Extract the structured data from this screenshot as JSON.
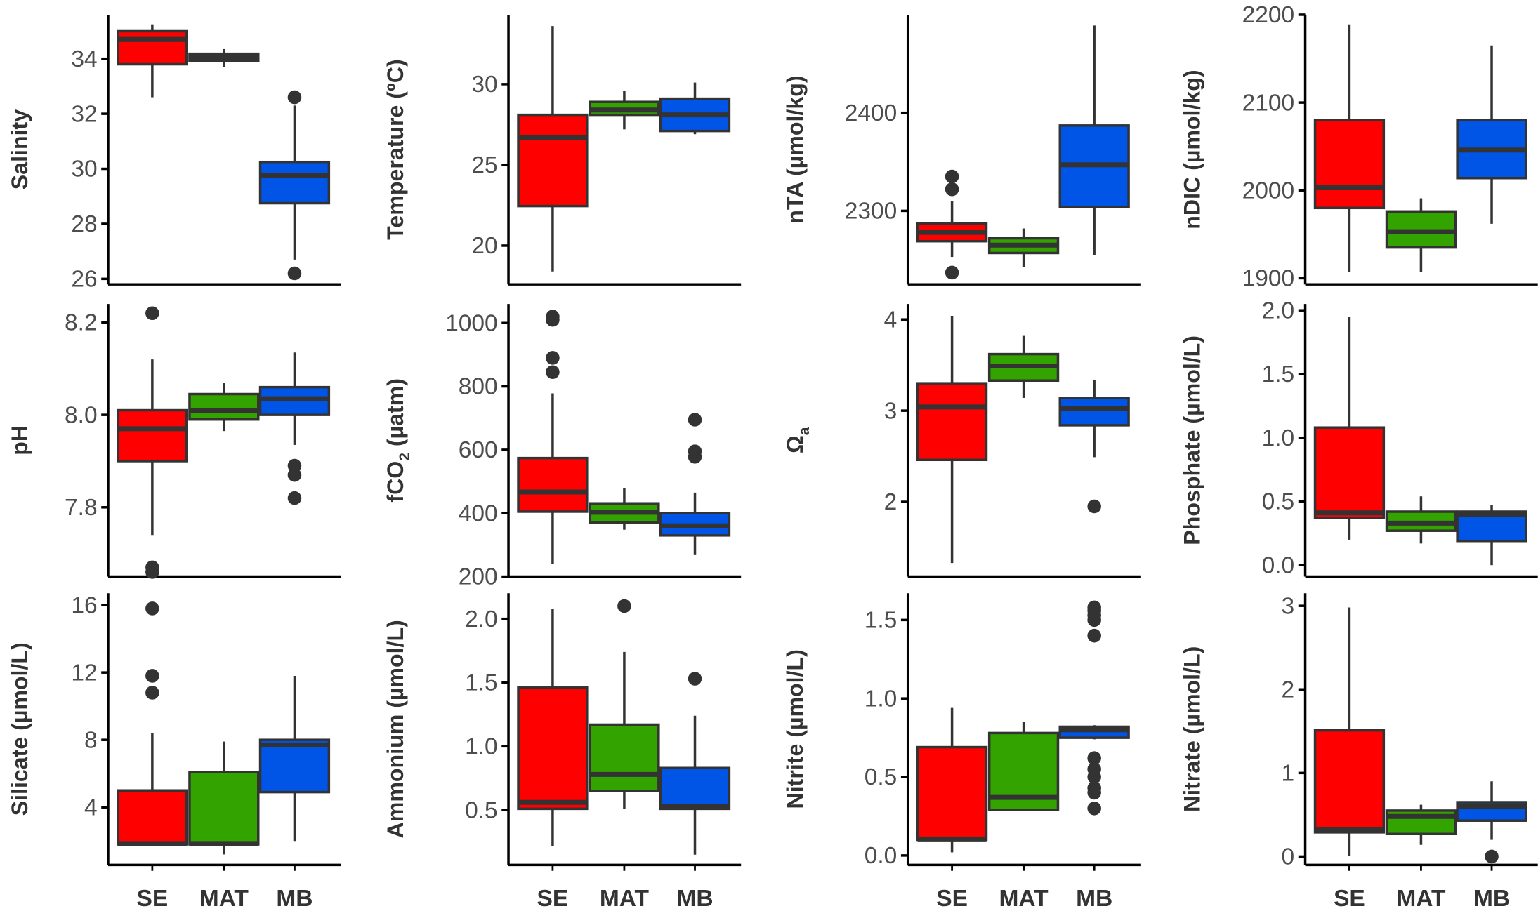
{
  "chart_data": {
    "type": "boxplot",
    "layout": "3x4 grid",
    "categories": [
      "SE",
      "MAT",
      "MB"
    ],
    "colors": {
      "SE": "#FF0000",
      "MAT": "#33A300",
      "MB": "#0055E6",
      "outline": "#333333"
    },
    "grid": false,
    "panels": [
      {
        "ylabel": {
          "main": "Salinity",
          "sub": "",
          "suffix": ""
        },
        "ylim": [
          25.8,
          35.6
        ],
        "ticks": [
          26,
          28,
          30,
          32,
          34
        ],
        "boxes": [
          {
            "min": 32.6,
            "q1": 33.8,
            "median": 34.7,
            "q3": 35.0,
            "max": 35.25,
            "outliers": []
          },
          {
            "min": 33.7,
            "q1": 33.93,
            "median": 34.05,
            "q3": 34.18,
            "max": 34.35,
            "outliers": []
          },
          {
            "min": 26.7,
            "q1": 28.75,
            "median": 29.75,
            "q3": 30.25,
            "max": 32.3,
            "outliers": [
              32.6,
              26.2
            ]
          }
        ]
      },
      {
        "ylabel": {
          "main": "Temperature (ºC)",
          "sub": "",
          "suffix": ""
        },
        "ylim": [
          17.6,
          34.3
        ],
        "ticks": [
          20,
          25,
          30
        ],
        "boxes": [
          {
            "min": 18.4,
            "q1": 22.45,
            "median": 26.7,
            "q3": 28.1,
            "max": 33.6,
            "outliers": []
          },
          {
            "min": 27.2,
            "q1": 28.1,
            "median": 28.4,
            "q3": 28.9,
            "max": 29.6,
            "outliers": []
          },
          {
            "min": 26.9,
            "q1": 27.1,
            "median": 28.1,
            "q3": 29.1,
            "max": 30.1,
            "outliers": []
          }
        ]
      },
      {
        "ylabel": {
          "main": "nTA (µmol/kg)",
          "sub": "",
          "suffix": ""
        },
        "ylim": [
          2225,
          2500
        ],
        "ticks": [
          2300,
          2400
        ],
        "boxes": [
          {
            "min": 2253,
            "q1": 2269,
            "median": 2278,
            "q3": 2287,
            "max": 2310,
            "outliers": [
              2335,
              2322,
              2237
            ]
          },
          {
            "min": 2243,
            "q1": 2257,
            "median": 2265,
            "q3": 2272,
            "max": 2282,
            "outliers": []
          },
          {
            "min": 2255,
            "q1": 2304,
            "median": 2347,
            "q3": 2387,
            "max": 2489,
            "outliers": []
          }
        ]
      },
      {
        "ylabel": {
          "main": "nDIC (µmol/kg)",
          "sub": "",
          "suffix": ""
        },
        "ylim": [
          1893,
          2200
        ],
        "ticks": [
          1900,
          2000,
          2100,
          2200
        ],
        "boxes": [
          {
            "min": 1907,
            "q1": 1980,
            "median": 2003,
            "q3": 2080,
            "max": 2189,
            "outliers": []
          },
          {
            "min": 1907,
            "q1": 1935,
            "median": 1953,
            "q3": 1976,
            "max": 1991,
            "outliers": []
          },
          {
            "min": 1962,
            "q1": 2014,
            "median": 2046,
            "q3": 2080,
            "max": 2165,
            "outliers": []
          }
        ]
      },
      {
        "ylabel": {
          "main": "pH",
          "sub": "",
          "suffix": ""
        },
        "ylim": [
          7.65,
          8.24
        ],
        "ticks": [
          7.8,
          8.0,
          8.2
        ],
        "tick_decimals": 1,
        "boxes": [
          {
            "min": 7.74,
            "q1": 7.9,
            "median": 7.97,
            "q3": 8.01,
            "max": 8.12,
            "outliers": [
              8.22,
              7.67,
              7.66
            ]
          },
          {
            "min": 7.965,
            "q1": 7.99,
            "median": 8.01,
            "q3": 8.045,
            "max": 8.07,
            "outliers": []
          },
          {
            "min": 7.935,
            "q1": 8.0,
            "median": 8.035,
            "q3": 8.06,
            "max": 8.135,
            "outliers": [
              7.89,
              7.87,
              7.82
            ]
          }
        ]
      },
      {
        "ylabel": {
          "main": "fCO",
          "sub": "2",
          "suffix": " (µatm)"
        },
        "ylim": [
          200,
          1060
        ],
        "ticks": [
          200,
          400,
          600,
          800,
          1000
        ],
        "boxes": [
          {
            "min": 240,
            "q1": 405,
            "median": 467,
            "q3": 574,
            "max": 778,
            "outliers": [
              1020,
              1010,
              890,
              845
            ]
          },
          {
            "min": 348,
            "q1": 370,
            "median": 403,
            "q3": 431,
            "max": 480,
            "outliers": []
          },
          {
            "min": 268,
            "q1": 330,
            "median": 360,
            "q3": 400,
            "max": 465,
            "outliers": [
              695,
              595,
              578
            ]
          }
        ]
      },
      {
        "ylabel": {
          "main": "Ω",
          "sub": "a",
          "suffix": ""
        },
        "ylim": [
          1.18,
          4.17
        ],
        "ticks": [
          2,
          3,
          4
        ],
        "boxes": [
          {
            "min": 1.33,
            "q1": 2.46,
            "median": 3.04,
            "q3": 3.3,
            "max": 4.04,
            "outliers": []
          },
          {
            "min": 3.14,
            "q1": 3.33,
            "median": 3.49,
            "q3": 3.62,
            "max": 3.82,
            "outliers": []
          },
          {
            "min": 2.49,
            "q1": 2.84,
            "median": 3.02,
            "q3": 3.14,
            "max": 3.34,
            "outliers": [
              1.95
            ]
          }
        ]
      },
      {
        "ylabel": {
          "main": "Phosphate (µmol/L)",
          "sub": "",
          "suffix": ""
        },
        "ylim": [
          -0.09,
          2.05
        ],
        "ticks": [
          0.0,
          0.5,
          1.0,
          1.5,
          2.0
        ],
        "tick_decimals": 1,
        "boxes": [
          {
            "min": 0.2,
            "q1": 0.37,
            "median": 0.41,
            "q3": 1.08,
            "max": 1.95,
            "outliers": []
          },
          {
            "min": 0.17,
            "q1": 0.27,
            "median": 0.33,
            "q3": 0.42,
            "max": 0.54,
            "outliers": []
          },
          {
            "min": 0.0,
            "q1": 0.19,
            "median": 0.4,
            "q3": 0.42,
            "max": 0.47,
            "outliers": []
          }
        ]
      },
      {
        "ylabel": {
          "main": "Silicate (µmol/L)",
          "sub": "",
          "suffix": ""
        },
        "ylim": [
          0.58,
          16.7
        ],
        "ticks": [
          4,
          8,
          12,
          16
        ],
        "boxes": [
          {
            "min": 1.75,
            "q1": 1.8,
            "median": 1.85,
            "q3": 5.0,
            "max": 8.4,
            "outliers": [
              15.8,
              11.8,
              10.8
            ]
          },
          {
            "min": 1.2,
            "q1": 1.8,
            "median": 1.85,
            "q3": 6.1,
            "max": 7.9,
            "outliers": []
          },
          {
            "min": 2.0,
            "q1": 4.9,
            "median": 7.7,
            "q3": 8.0,
            "max": 11.8,
            "outliers": []
          }
        ]
      },
      {
        "ylabel": {
          "main": "Ammonium (µmol/L)",
          "sub": "",
          "suffix": ""
        },
        "ylim": [
          0.07,
          2.2
        ],
        "ticks": [
          0.5,
          1.0,
          1.5,
          2.0
        ],
        "tick_decimals": 1,
        "boxes": [
          {
            "min": 0.22,
            "q1": 0.51,
            "median": 0.56,
            "q3": 1.46,
            "max": 2.08,
            "outliers": []
          },
          {
            "min": 0.51,
            "q1": 0.65,
            "median": 0.78,
            "q3": 1.17,
            "max": 1.74,
            "outliers": [
              2.1
            ]
          },
          {
            "min": 0.15,
            "q1": 0.51,
            "median": 0.53,
            "q3": 0.83,
            "max": 1.24,
            "outliers": [
              1.53
            ]
          }
        ]
      },
      {
        "ylabel": {
          "main": "Nitrite (µmol/L)",
          "sub": "",
          "suffix": ""
        },
        "ylim": [
          -0.06,
          1.67
        ],
        "ticks": [
          0.0,
          0.5,
          1.0,
          1.5
        ],
        "tick_decimals": 1,
        "boxes": [
          {
            "min": 0.02,
            "q1": 0.1,
            "median": 0.105,
            "q3": 0.69,
            "max": 0.94,
            "outliers": []
          },
          {
            "min": 0.29,
            "q1": 0.29,
            "median": 0.37,
            "q3": 0.78,
            "max": 0.85,
            "outliers": []
          },
          {
            "min": 0.74,
            "q1": 0.75,
            "median": 0.8,
            "q3": 0.82,
            "max": 0.83,
            "outliers": [
              1.58,
              1.56,
              1.53,
              1.5,
              1.4,
              0.62,
              0.55,
              0.5,
              0.43,
              0.4,
              0.3
            ]
          }
        ]
      },
      {
        "ylabel": {
          "main": "Nitrate (µmol/L)",
          "sub": "",
          "suffix": ""
        },
        "ylim": [
          -0.1,
          3.15
        ],
        "ticks": [
          0,
          1,
          2,
          3
        ],
        "boxes": [
          {
            "min": 0.01,
            "q1": 0.29,
            "median": 0.32,
            "q3": 1.51,
            "max": 2.98,
            "outliers": []
          },
          {
            "min": 0.14,
            "q1": 0.27,
            "median": 0.48,
            "q3": 0.55,
            "max": 0.62,
            "outliers": []
          },
          {
            "min": 0.2,
            "q1": 0.43,
            "median": 0.6,
            "q3": 0.65,
            "max": 0.9,
            "outliers": [
              0.0
            ]
          }
        ]
      }
    ]
  }
}
